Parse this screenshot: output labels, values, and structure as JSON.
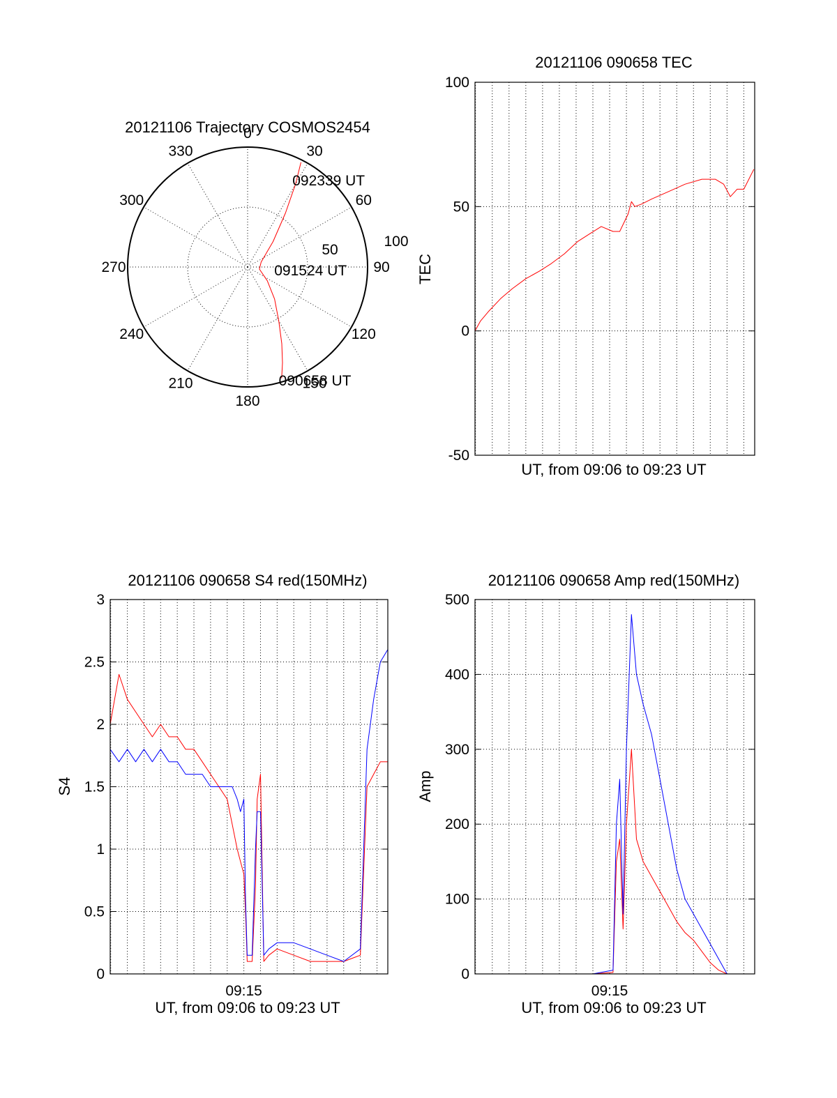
{
  "chart_data": [
    {
      "type": "polar",
      "title": "20121106 Trajectory COSMOS2454",
      "azimuth_labels": [
        "0",
        "30",
        "60",
        "90",
        "120",
        "150",
        "180",
        "210",
        "240",
        "270",
        "300",
        "330"
      ],
      "radial_labels": [
        "50",
        "100"
      ],
      "rlim": [
        0,
        100
      ],
      "grid": true,
      "colors": {
        "trajectory": "#ff0000"
      },
      "trajectory": {
        "azimuth_deg": [
          163,
          160,
          156,
          150,
          140,
          125,
          100,
          70,
          45,
          35,
          30,
          27
        ],
        "radius": [
          97,
          85,
          70,
          52,
          35,
          20,
          10,
          12,
          30,
          55,
          80,
          98
        ]
      },
      "annotations": [
        {
          "text": "090658 UT",
          "azimuth_deg": 162,
          "radius": 99
        },
        {
          "text": "091524 UT",
          "azimuth_deg": 95,
          "radius": 27
        },
        {
          "text": "092339 UT",
          "azimuth_deg": 30,
          "radius": 84
        }
      ]
    },
    {
      "type": "line",
      "title": "20121106 090658 TEC",
      "xlabel": "UT, from 09:06 to 09:23 UT",
      "ylabel": "TEC",
      "ylim": [
        -50,
        100
      ],
      "yticks": [
        "-50",
        "0",
        "50",
        "100"
      ],
      "xlim_min": [
        6.97,
        23.65
      ],
      "grid": true,
      "series": [
        {
          "color": "#ff0000",
          "x": [
            6.97,
            7.3,
            7.8,
            8.5,
            9.2,
            10.0,
            10.8,
            11.5,
            12.3,
            13.1,
            13.8,
            14.5,
            15.2,
            15.6,
            16.1,
            16.3,
            16.5,
            16.9,
            17.5,
            18.5,
            19.5,
            20.5,
            21.3,
            21.8,
            22.2,
            22.6,
            23.0,
            23.3,
            23.6
          ],
          "y": [
            0,
            4,
            8,
            13,
            17,
            21,
            24,
            27,
            31,
            36,
            39,
            42,
            40,
            40,
            47,
            52,
            50,
            51,
            53,
            56,
            59,
            61,
            61,
            59,
            54,
            57,
            57,
            61,
            65
          ]
        }
      ]
    },
    {
      "type": "line",
      "title": "20121106 090658 S4 red(150MHz)",
      "xlabel": "UT, from 09:06 to 09:23 UT",
      "ylabel": "S4",
      "ylim": [
        0,
        3
      ],
      "yticks": [
        "0",
        "0.5",
        "1",
        "1.5",
        "2",
        "2.5",
        "3"
      ],
      "xticks": [
        "09:15"
      ],
      "xlim_min": [
        6.97,
        23.65
      ],
      "grid": true,
      "series": [
        {
          "color": "#ff0000",
          "x": [
            6.97,
            7.5,
            8.0,
            8.5,
            9.0,
            9.5,
            10.0,
            10.5,
            11.0,
            11.5,
            12.0,
            12.5,
            13.0,
            13.5,
            14.0,
            14.3,
            14.6,
            14.8,
            15.0,
            15.1,
            15.2,
            15.5,
            15.7,
            15.8,
            16.0,
            16.2,
            16.5,
            17.0,
            18.0,
            19.0,
            20.0,
            21.0,
            22.0,
            22.4,
            22.8,
            23.2,
            23.65
          ],
          "y": [
            2.0,
            2.4,
            2.2,
            2.1,
            2.0,
            1.9,
            2.0,
            1.9,
            1.9,
            1.8,
            1.8,
            1.7,
            1.6,
            1.5,
            1.4,
            1.2,
            1.0,
            0.9,
            0.8,
            0.5,
            0.1,
            0.1,
            0.7,
            1.4,
            1.6,
            0.1,
            0.15,
            0.2,
            0.15,
            0.1,
            0.1,
            0.1,
            0.15,
            1.5,
            1.6,
            1.7,
            1.7
          ]
        },
        {
          "color": "#0000ff",
          "x": [
            6.97,
            7.5,
            8.0,
            8.5,
            9.0,
            9.5,
            10.0,
            10.5,
            11.0,
            11.5,
            12.0,
            12.5,
            13.0,
            13.5,
            14.0,
            14.3,
            14.6,
            14.8,
            15.0,
            15.1,
            15.2,
            15.5,
            15.7,
            15.8,
            16.0,
            16.2,
            16.5,
            17.0,
            18.0,
            19.0,
            20.0,
            21.0,
            22.0,
            22.4,
            22.8,
            23.2,
            23.65
          ],
          "y": [
            1.8,
            1.7,
            1.8,
            1.7,
            1.8,
            1.7,
            1.8,
            1.7,
            1.7,
            1.6,
            1.6,
            1.6,
            1.5,
            1.5,
            1.5,
            1.5,
            1.4,
            1.3,
            1.4,
            0.6,
            0.15,
            0.15,
            1.0,
            1.3,
            1.3,
            0.15,
            0.2,
            0.25,
            0.25,
            0.2,
            0.15,
            0.1,
            0.2,
            1.8,
            2.2,
            2.5,
            2.6
          ]
        }
      ]
    },
    {
      "type": "line",
      "title": "20121106 090658 Amp red(150MHz)",
      "xlabel": "UT, from 09:06 to 09:23 UT",
      "ylabel": "Amp",
      "ylim": [
        0,
        500
      ],
      "yticks": [
        "0",
        "100",
        "200",
        "300",
        "400",
        "500"
      ],
      "xticks": [
        "09:15"
      ],
      "xlim_min": [
        6.97,
        23.65
      ],
      "grid": true,
      "series": [
        {
          "color": "#ff0000",
          "x": [
            6.97,
            10.0,
            14.0,
            15.2,
            15.4,
            15.6,
            15.8,
            16.0,
            16.3,
            16.6,
            17.0,
            17.5,
            18.0,
            18.5,
            19.0,
            19.5,
            20.0,
            20.5,
            21.0,
            21.5,
            22.0,
            23.65
          ],
          "y": [
            0,
            0,
            0,
            2,
            150,
            180,
            60,
            200,
            300,
            180,
            150,
            130,
            110,
            90,
            70,
            55,
            45,
            30,
            15,
            5,
            0,
            0
          ]
        },
        {
          "color": "#0000ff",
          "x": [
            6.97,
            10.0,
            14.0,
            15.2,
            15.4,
            15.6,
            15.8,
            16.0,
            16.3,
            16.6,
            17.0,
            17.5,
            18.0,
            18.5,
            19.0,
            19.5,
            20.0,
            20.5,
            21.0,
            21.5,
            22.0,
            23.65
          ],
          "y": [
            0,
            0,
            0,
            5,
            200,
            260,
            80,
            300,
            480,
            400,
            360,
            320,
            260,
            200,
            140,
            100,
            80,
            60,
            40,
            20,
            0,
            0
          ]
        }
      ]
    }
  ]
}
